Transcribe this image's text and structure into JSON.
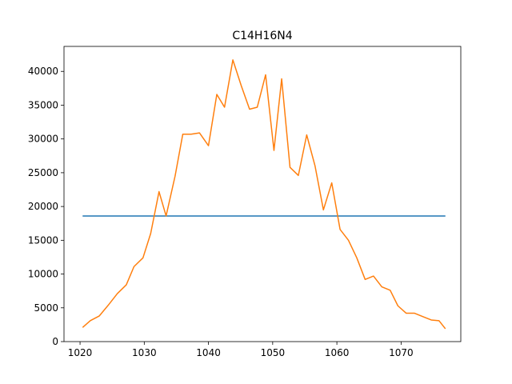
{
  "chart_data": {
    "type": "line",
    "title": "C14H16N4",
    "xlabel": "",
    "ylabel": "",
    "xlim": [
      1017.5,
      1079.3
    ],
    "ylim": [
      0,
      43700
    ],
    "xticks": [
      1020,
      1030,
      1040,
      1050,
      1060,
      1070
    ],
    "yticks": [
      0,
      5000,
      10000,
      15000,
      20000,
      25000,
      30000,
      35000,
      40000
    ],
    "grid": false,
    "series": [
      {
        "color": "#1f77b4",
        "x": [
          1020.4,
          1076.9
        ],
        "y": [
          18600,
          18600
        ]
      },
      {
        "color": "#ff7f0e",
        "x": [
          1020.4,
          1021.6,
          1023.0,
          1024.4,
          1025.8,
          1027.2,
          1028.4,
          1029.8,
          1031.0,
          1032.3,
          1033.4,
          1034.8,
          1036.0,
          1037.3,
          1038.6,
          1040.0,
          1041.3,
          1042.5,
          1043.8,
          1045.1,
          1046.4,
          1047.6,
          1048.9,
          1050.2,
          1051.4,
          1052.7,
          1054.0,
          1055.3,
          1056.6,
          1057.9,
          1059.2,
          1060.5,
          1061.8,
          1063.1,
          1064.4,
          1065.7,
          1067.0,
          1068.3,
          1069.5,
          1070.8,
          1072.1,
          1073.4,
          1074.7,
          1075.9,
          1076.9
        ],
        "y": [
          2100,
          3100,
          3800,
          5400,
          7100,
          8400,
          11100,
          12400,
          16000,
          22200,
          18600,
          24500,
          30700,
          30700,
          30900,
          29000,
          36600,
          34700,
          41700,
          37900,
          34400,
          34700,
          39500,
          28300,
          38900,
          25800,
          24600,
          30600,
          26000,
          19500,
          23500,
          16600,
          15000,
          12400,
          9200,
          9700,
          8100,
          7600,
          5300,
          4200,
          4200,
          3700,
          3200,
          3100,
          1900
        ]
      }
    ]
  }
}
